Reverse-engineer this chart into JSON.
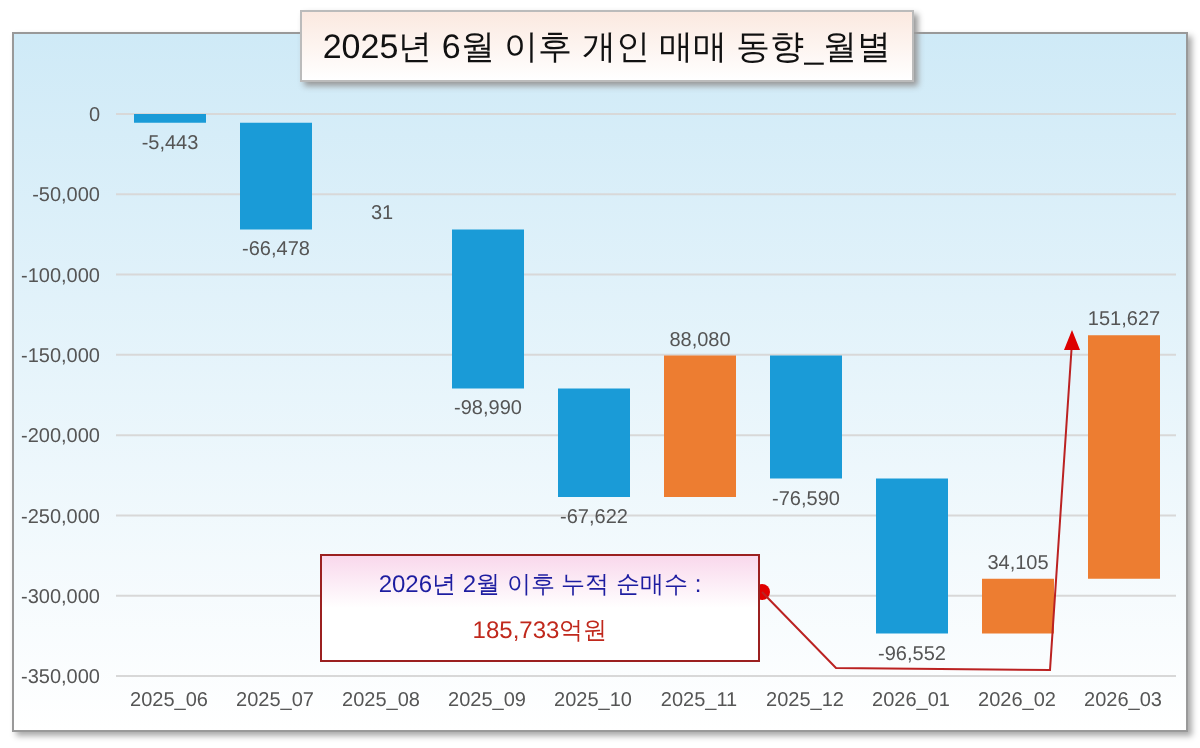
{
  "chart_data": {
    "type": "bar",
    "title": "2025년 6월 이후 개인 매매 동향_월별",
    "categories": [
      "2025_06",
      "2025_07",
      "2025_08",
      "2025_09",
      "2025_10",
      "2025_11",
      "2025_12",
      "2026_01",
      "2026_02",
      "2026_03"
    ],
    "values": [
      -5443,
      -66478,
      31,
      -98990,
      -67622,
      88080,
      -76590,
      -96552,
      34105,
      151627
    ],
    "base": [
      0,
      -5443,
      -71921,
      -71890,
      -170880,
      -238502,
      -150422,
      -227012,
      -323564,
      -289459
    ],
    "colors": [
      "#1a9bd7",
      "#1a9bd7",
      "#ed7d31",
      "#1a9bd7",
      "#1a9bd7",
      "#ed7d31",
      "#1a9bd7",
      "#1a9bd7",
      "#ed7d31",
      "#ed7d31"
    ],
    "ylim": [
      -350000,
      0
    ],
    "value_labels": [
      "-5,443",
      "-66,478",
      "31",
      "-98,990",
      "-67,622",
      "88,080",
      "-76,590",
      "-96,552",
      "34,105",
      "151,627"
    ],
    "yticks": [
      0,
      {
        "value": -50000,
        "label": "-50,000"
      },
      {
        "value": -100000,
        "label": "-100,000"
      },
      {
        "value": -150000,
        "label": "-150,000"
      },
      {
        "value": -200000,
        "label": "-200,000"
      },
      {
        "value": -250000,
        "label": "-250,000"
      },
      {
        "value": -300000,
        "label": "-300,000"
      },
      {
        "value": -350000,
        "label": "-350,000"
      }
    ],
    "grid": "y",
    "annotations": [
      "2026년 2월 이후 누적 순매수 :",
      "185,733억원"
    ]
  }
}
